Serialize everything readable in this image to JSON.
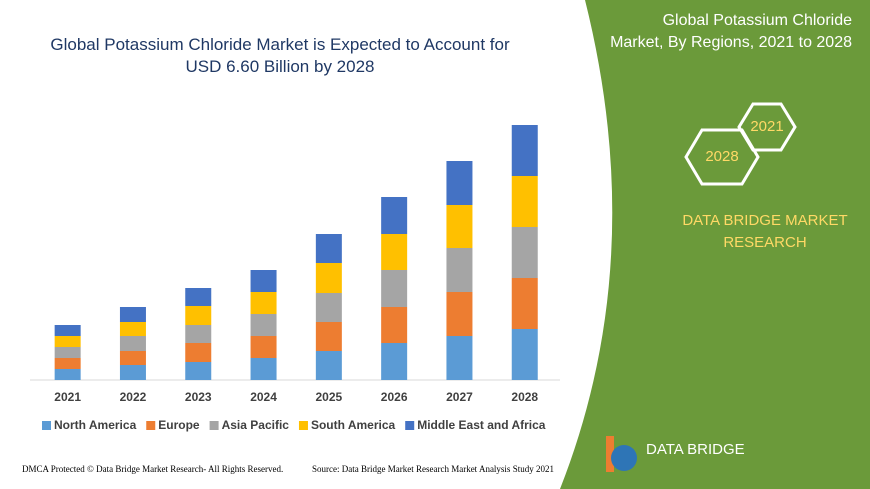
{
  "chart_data": {
    "type": "stacked-bar",
    "title": "Global Potassium Chloride Market is Expected to Account for USD 6.60 Billion by 2028",
    "categories": [
      "2021",
      "2022",
      "2023",
      "2024",
      "2025",
      "2026",
      "2027",
      "2028"
    ],
    "series": [
      {
        "name": "North America",
        "color": "#5b9bd5",
        "values": [
          11,
          15,
          18,
          22,
          29,
          37,
          44,
          51
        ]
      },
      {
        "name": "Europe",
        "color": "#ed7d31",
        "values": [
          11,
          14,
          19,
          22,
          29,
          36,
          44,
          51
        ]
      },
      {
        "name": "Asia Pacific",
        "color": "#a5a5a5",
        "values": [
          11,
          15,
          18,
          22,
          29,
          37,
          44,
          51
        ]
      },
      {
        "name": "South America",
        "color": "#ffc000",
        "values": [
          11,
          14,
          19,
          22,
          30,
          36,
          43,
          51
        ]
      },
      {
        "name": "Middle East and Africa",
        "color": "#4472c4",
        "values": [
          11,
          15,
          18,
          22,
          29,
          37,
          44,
          51
        ]
      }
    ]
  },
  "side_panel": {
    "title": "Global Potassium Chloride Market, By Regions, 2021 to 2028",
    "hexagons": [
      "2021",
      "2028"
    ],
    "brand": "DATA BRIDGE MARKET RESEARCH"
  },
  "logo": {
    "name": "DATA BRIDGE"
  },
  "footer": {
    "left": "DMCA Protected © Data Bridge Market Research- All Rights Reserved.",
    "right": "Source: Data Bridge Market Research Market Analysis Study 2021"
  }
}
